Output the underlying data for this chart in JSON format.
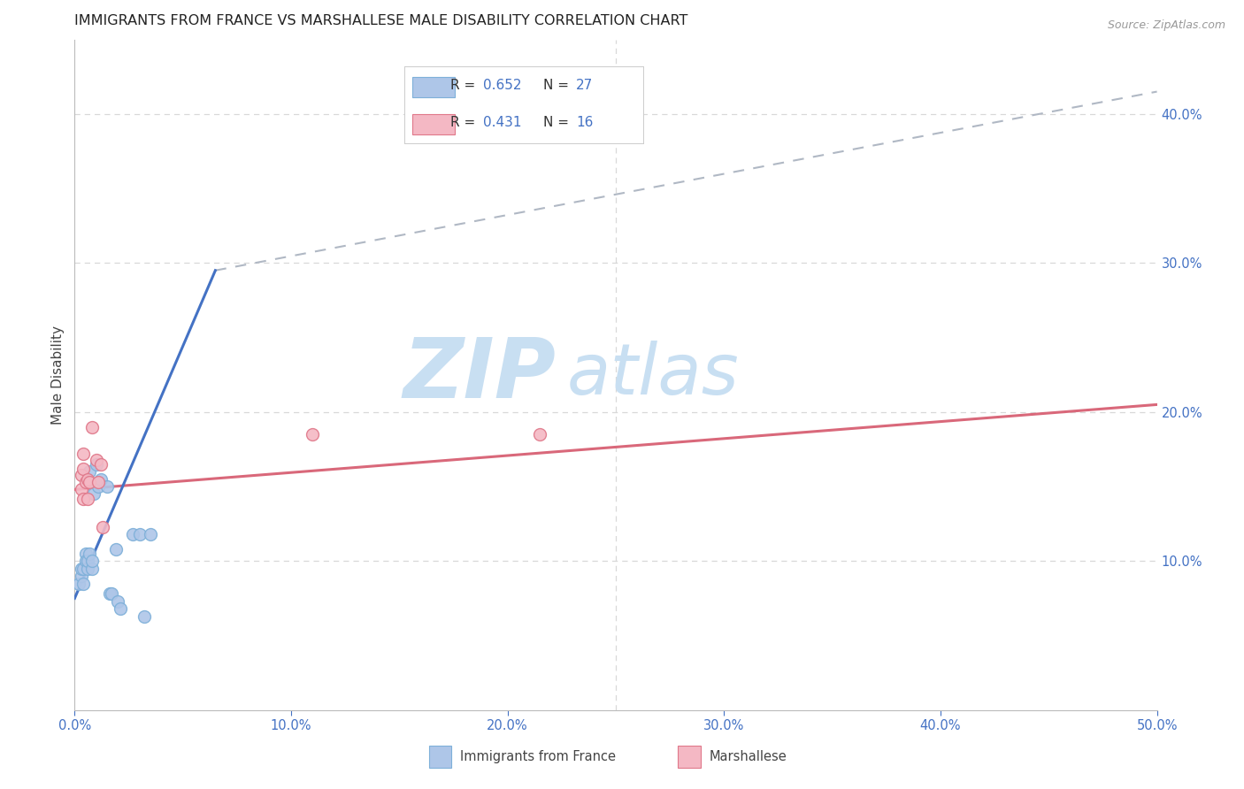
{
  "title": "IMMIGRANTS FROM FRANCE VS MARSHALLESE MALE DISABILITY CORRELATION CHART",
  "source": "Source: ZipAtlas.com",
  "ylabel": "Male Disability",
  "xlim": [
    0.0,
    0.5
  ],
  "ylim": [
    0.0,
    0.45
  ],
  "xtick_positions": [
    0.0,
    0.1,
    0.2,
    0.3,
    0.4,
    0.5
  ],
  "ytick_positions": [
    0.1,
    0.2,
    0.3,
    0.4
  ],
  "xticklabels": [
    "0.0%",
    "10.0%",
    "20.0%",
    "30.0%",
    "40.0%",
    "50.0%"
  ],
  "yticklabels": [
    "10.0%",
    "20.0%",
    "30.0%",
    "40.0%"
  ],
  "background_color": "#ffffff",
  "grid_color": "#d8d8d8",
  "france_color": "#aec6e8",
  "france_edge_color": "#7eb0d9",
  "marshallese_color": "#f4b8c4",
  "marshallese_edge_color": "#e0788a",
  "france_R": "0.652",
  "france_N": "27",
  "marshallese_R": "0.431",
  "marshallese_N": "16",
  "france_line_color": "#4472c4",
  "marshallese_line_color": "#d9687a",
  "dashed_line_color": "#b0b8c4",
  "legend_france_color": "#aec6e8",
  "legend_marshallese_color": "#f4b8c4",
  "legend_text_color": "#4472c4",
  "legend_label_color": "#333333",
  "watermark_zip": "ZIP",
  "watermark_atlas": "atlas",
  "watermark_color": "#c8dff2",
  "title_color": "#222222",
  "axis_label_color": "#444444",
  "tick_color": "#4472c4",
  "marker_size": 100,
  "france_x": [
    0.002,
    0.003,
    0.003,
    0.004,
    0.004,
    0.005,
    0.005,
    0.006,
    0.006,
    0.007,
    0.007,
    0.008,
    0.008,
    0.009,
    0.01,
    0.011,
    0.012,
    0.015,
    0.016,
    0.017,
    0.019,
    0.02,
    0.021,
    0.027,
    0.03,
    0.032,
    0.035
  ],
  "france_y": [
    0.085,
    0.09,
    0.095,
    0.085,
    0.095,
    0.105,
    0.1,
    0.095,
    0.1,
    0.105,
    0.16,
    0.095,
    0.1,
    0.145,
    0.165,
    0.15,
    0.155,
    0.15,
    0.078,
    0.078,
    0.108,
    0.073,
    0.068,
    0.118,
    0.118,
    0.063,
    0.118
  ],
  "marshallese_x": [
    0.003,
    0.003,
    0.004,
    0.004,
    0.004,
    0.005,
    0.006,
    0.006,
    0.007,
    0.008,
    0.01,
    0.011,
    0.012,
    0.013,
    0.11,
    0.215
  ],
  "marshallese_y": [
    0.148,
    0.158,
    0.162,
    0.142,
    0.172,
    0.153,
    0.142,
    0.155,
    0.153,
    0.19,
    0.168,
    0.153,
    0.165,
    0.123,
    0.185,
    0.185
  ],
  "france_line_x": [
    0.0,
    0.065
  ],
  "france_line_y": [
    0.075,
    0.295
  ],
  "marshallese_line_x": [
    0.0,
    0.5
  ],
  "marshallese_line_y": [
    0.148,
    0.205
  ],
  "dashed_line_x": [
    0.065,
    0.5
  ],
  "dashed_line_y": [
    0.295,
    0.415
  ],
  "bottom_legend_france_label": "Immigrants from France",
  "bottom_legend_marshallese_label": "Marshallese"
}
